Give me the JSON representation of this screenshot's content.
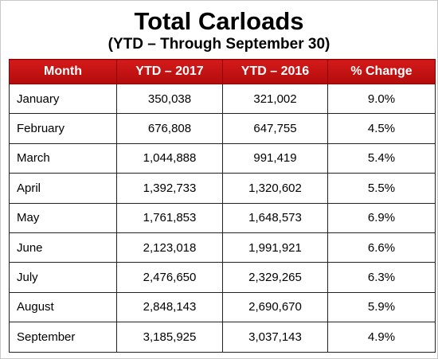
{
  "header": {
    "title": "Total Carloads",
    "subtitle": "(YTD – Through September 30)"
  },
  "table": {
    "columns": [
      "Month",
      "YTD – 2017",
      "YTD – 2016",
      "% Change"
    ],
    "rows": [
      [
        "January",
        "350,038",
        "321,002",
        "9.0%"
      ],
      [
        "February",
        "676,808",
        "647,755",
        "4.5%"
      ],
      [
        "March",
        "1,044,888",
        "991,419",
        "5.4%"
      ],
      [
        "April",
        "1,392,733",
        "1,320,602",
        "5.5%"
      ],
      [
        "May",
        "1,761,853",
        "1,648,573",
        "6.9%"
      ],
      [
        "June",
        "2,123,018",
        "1,991,921",
        "6.6%"
      ],
      [
        "July",
        "2,476,650",
        "2,329,265",
        "6.3%"
      ],
      [
        "August",
        "2,848,143",
        "2,690,670",
        "5.9%"
      ],
      [
        "September",
        "3,185,925",
        "3,037,143",
        "4.9%"
      ]
    ]
  }
}
